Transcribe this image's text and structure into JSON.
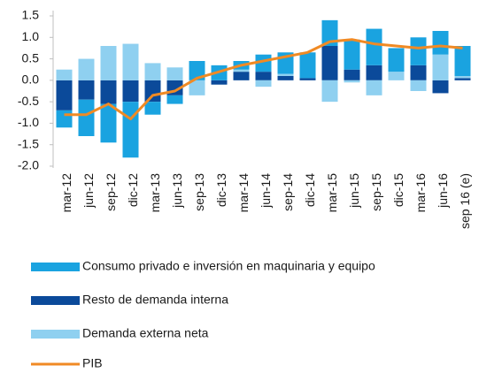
{
  "chart_data": {
    "type": "bar_line",
    "categories": [
      "mar-12",
      "jun-12",
      "sep-12",
      "dic-12",
      "mar-13",
      "jun-13",
      "sep-13",
      "dic-13",
      "mar-14",
      "jun-14",
      "sep-14",
      "dic-14",
      "mar-15",
      "jun-15",
      "sep-15",
      "dic-15",
      "mar-16",
      "jun-16",
      "sep 16 (e)"
    ],
    "series": [
      {
        "name": "Consumo privado e inversión en maquinaria y equipo",
        "color": "#1aa3e0",
        "type": "bar",
        "values": [
          -0.4,
          -0.85,
          -0.9,
          -1.3,
          -0.3,
          -0.2,
          0.45,
          0.35,
          0.2,
          0.4,
          0.5,
          0.6,
          0.6,
          0.7,
          0.85,
          0.55,
          0.65,
          0.55,
          0.7
        ]
      },
      {
        "name": "Resto de demanda interna",
        "color": "#0b4a9a",
        "type": "bar",
        "values": [
          -0.7,
          -0.45,
          -0.55,
          -0.5,
          -0.5,
          -0.35,
          0.0,
          -0.1,
          0.2,
          0.2,
          0.1,
          0.05,
          0.8,
          0.25,
          0.35,
          0.0,
          0.35,
          -0.3,
          0.05
        ]
      },
      {
        "name": "Demanda externa neta",
        "color": "#8fd0f0",
        "type": "bar",
        "values": [
          0.25,
          0.5,
          0.8,
          0.85,
          0.4,
          0.3,
          -0.35,
          0.0,
          0.05,
          -0.15,
          0.05,
          0.0,
          -0.5,
          -0.05,
          -0.35,
          0.2,
          -0.25,
          0.6,
          0.05
        ]
      },
      {
        "name": "PIB",
        "color": "#f08a24",
        "type": "line",
        "values": [
          -0.8,
          -0.8,
          -0.55,
          -0.9,
          -0.35,
          -0.25,
          0.05,
          0.2,
          0.35,
          0.45,
          0.55,
          0.65,
          0.9,
          0.95,
          0.85,
          0.8,
          0.75,
          0.8,
          0.75
        ]
      }
    ],
    "ylim": [
      -2.0,
      1.5
    ],
    "yticks": [
      {
        "value": -2.0,
        "label": "-2.0"
      },
      -1.5,
      {
        "value": -1.0,
        "label": "-1.0"
      },
      -0.5,
      {
        "value": 0.0,
        "label": "0.0"
      },
      0.5,
      {
        "value": 1.0,
        "label": "1.0"
      },
      1.5
    ],
    "grid": false
  }
}
